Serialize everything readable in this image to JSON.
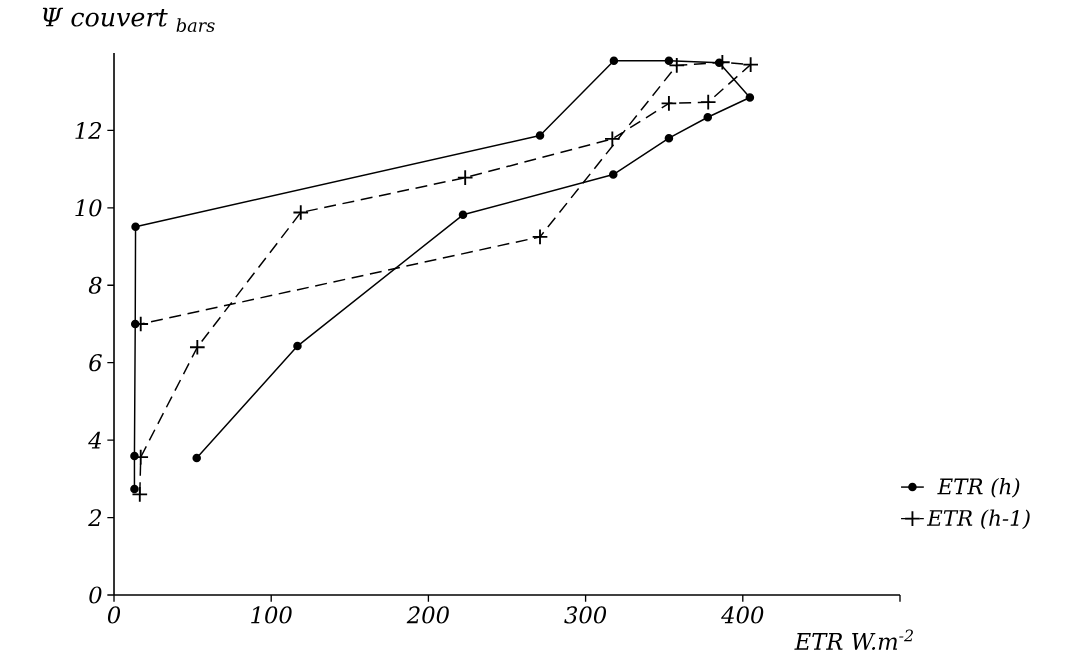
{
  "chart_data": {
    "type": "line",
    "xlabel": "ETR W.m$^{-2}$",
    "ylabel": "Ψ couvert $_{bars}$",
    "xlim": [
      0,
      500
    ],
    "ylim": [
      0,
      14
    ],
    "xticks": [
      0,
      100,
      200,
      300,
      400,
      {
        "value": 500,
        "label": null
      }
    ],
    "yticks": [
      0,
      2,
      4,
      6,
      8,
      10,
      12
    ],
    "grid": false,
    "legend": "right",
    "series": [
      {
        "name": "ETR (h)",
        "color": "#000000",
        "marker": "circle",
        "line_style": "solid",
        "x": [
          13,
          13,
          13.5,
          13.7,
          271,
          318,
          353,
          385,
          404.5,
          377.7,
          353,
          317.6,
          222,
          116.7,
          52.6
        ],
        "values": [
          2.74,
          3.59,
          7.0,
          9.51,
          11.87,
          13.8,
          13.8,
          13.75,
          12.85,
          12.34,
          11.8,
          10.86,
          9.82,
          6.43,
          3.54
        ]
      },
      {
        "name": "ETR (h-1)",
        "color": "#000000",
        "marker": "cross",
        "line_style": "dashed",
        "x": [
          16.4,
          17,
          53,
          118.8,
          223.4,
          317,
          353,
          378,
          405,
          387,
          358,
          271,
          17
        ],
        "values": [
          2.6,
          3.56,
          6.4,
          9.88,
          10.78,
          11.78,
          12.7,
          12.73,
          13.7,
          13.76,
          13.68,
          9.25,
          7.0
        ]
      }
    ]
  }
}
